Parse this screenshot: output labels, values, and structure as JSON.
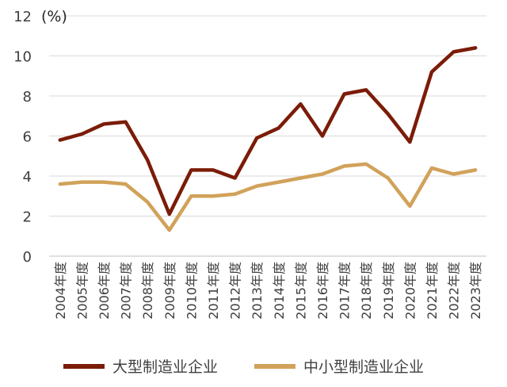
{
  "chart_data": {
    "type": "line",
    "unit_label": "(%)",
    "ylim": [
      0,
      12
    ],
    "yticks": [
      "0",
      "2",
      "4",
      "6",
      "8",
      "10",
      "12"
    ],
    "grid": true,
    "legend_position": "bottom",
    "categories": [
      "2004年度",
      "2005年度",
      "2006年度",
      "2007年度",
      "2008年度",
      "2009年度",
      "2010年度",
      "2011年度",
      "2012年度",
      "2013年度",
      "2014年度",
      "2015年度",
      "2016年度",
      "2017年度",
      "2018年度",
      "2019年度",
      "2020年度",
      "2021年度",
      "2022年度",
      "2023年度"
    ],
    "series": [
      {
        "name": "大型制造业企业",
        "color": "#7b1c08",
        "values": [
          5.8,
          6.1,
          6.6,
          6.7,
          4.8,
          2.1,
          4.3,
          4.3,
          3.9,
          5.9,
          6.4,
          7.6,
          6.0,
          8.1,
          8.3,
          7.1,
          5.7,
          9.2,
          10.2,
          10.4
        ]
      },
      {
        "name": "中小型制造业企业",
        "color": "#d1a25a",
        "values": [
          3.6,
          3.7,
          3.7,
          3.6,
          2.7,
          1.3,
          3.0,
          3.0,
          3.1,
          3.5,
          3.7,
          3.9,
          4.1,
          4.5,
          4.6,
          3.9,
          2.5,
          4.4,
          4.1,
          4.3
        ]
      }
    ]
  }
}
